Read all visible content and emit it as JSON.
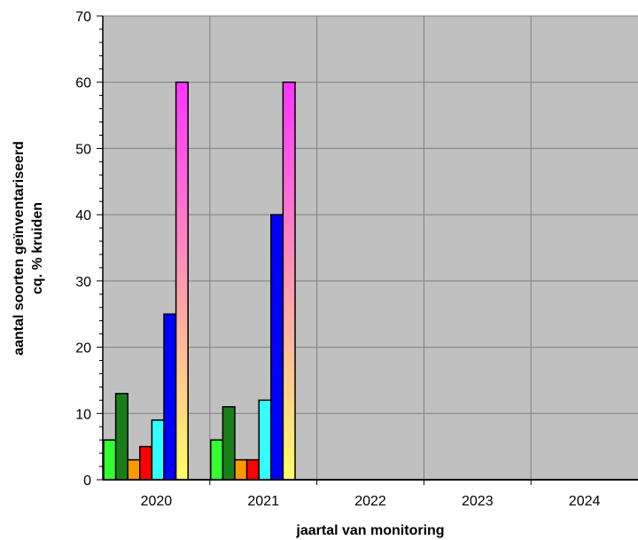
{
  "chart_data": {
    "type": "bar",
    "categories": [
      "2020",
      "2021",
      "2022",
      "2023",
      "2024"
    ],
    "series": [
      {
        "values": [
          6,
          6,
          0,
          0,
          0
        ],
        "color": "#33ff33"
      },
      {
        "values": [
          13,
          11,
          0,
          0,
          0
        ],
        "color": "#1a7f1a"
      },
      {
        "values": [
          3,
          3,
          0,
          0,
          0
        ],
        "color": "#ff9900"
      },
      {
        "values": [
          5,
          3,
          0,
          0,
          0
        ],
        "color": "#ff0000"
      },
      {
        "values": [
          9,
          12,
          0,
          0,
          0
        ],
        "color": "#33ffff"
      },
      {
        "values": [
          25,
          40,
          0,
          0,
          0
        ],
        "color": "#0000ff"
      },
      {
        "values": [
          60,
          60,
          0,
          0,
          0
        ],
        "gradient": [
          "#ff33ff",
          "#ffff66"
        ]
      }
    ],
    "xlabel": "jaartal van monitoring",
    "ylabel": [
      "aantal soorten geïnventariseerd",
      "cq. % kruiden"
    ],
    "ylim": [
      0,
      70
    ],
    "yticks": [
      0,
      10,
      20,
      30,
      40,
      50,
      60,
      70
    ],
    "grid": true,
    "plot_background": "#c0c0c0",
    "gridline_color": "#808080",
    "bar_border": "#000000"
  }
}
